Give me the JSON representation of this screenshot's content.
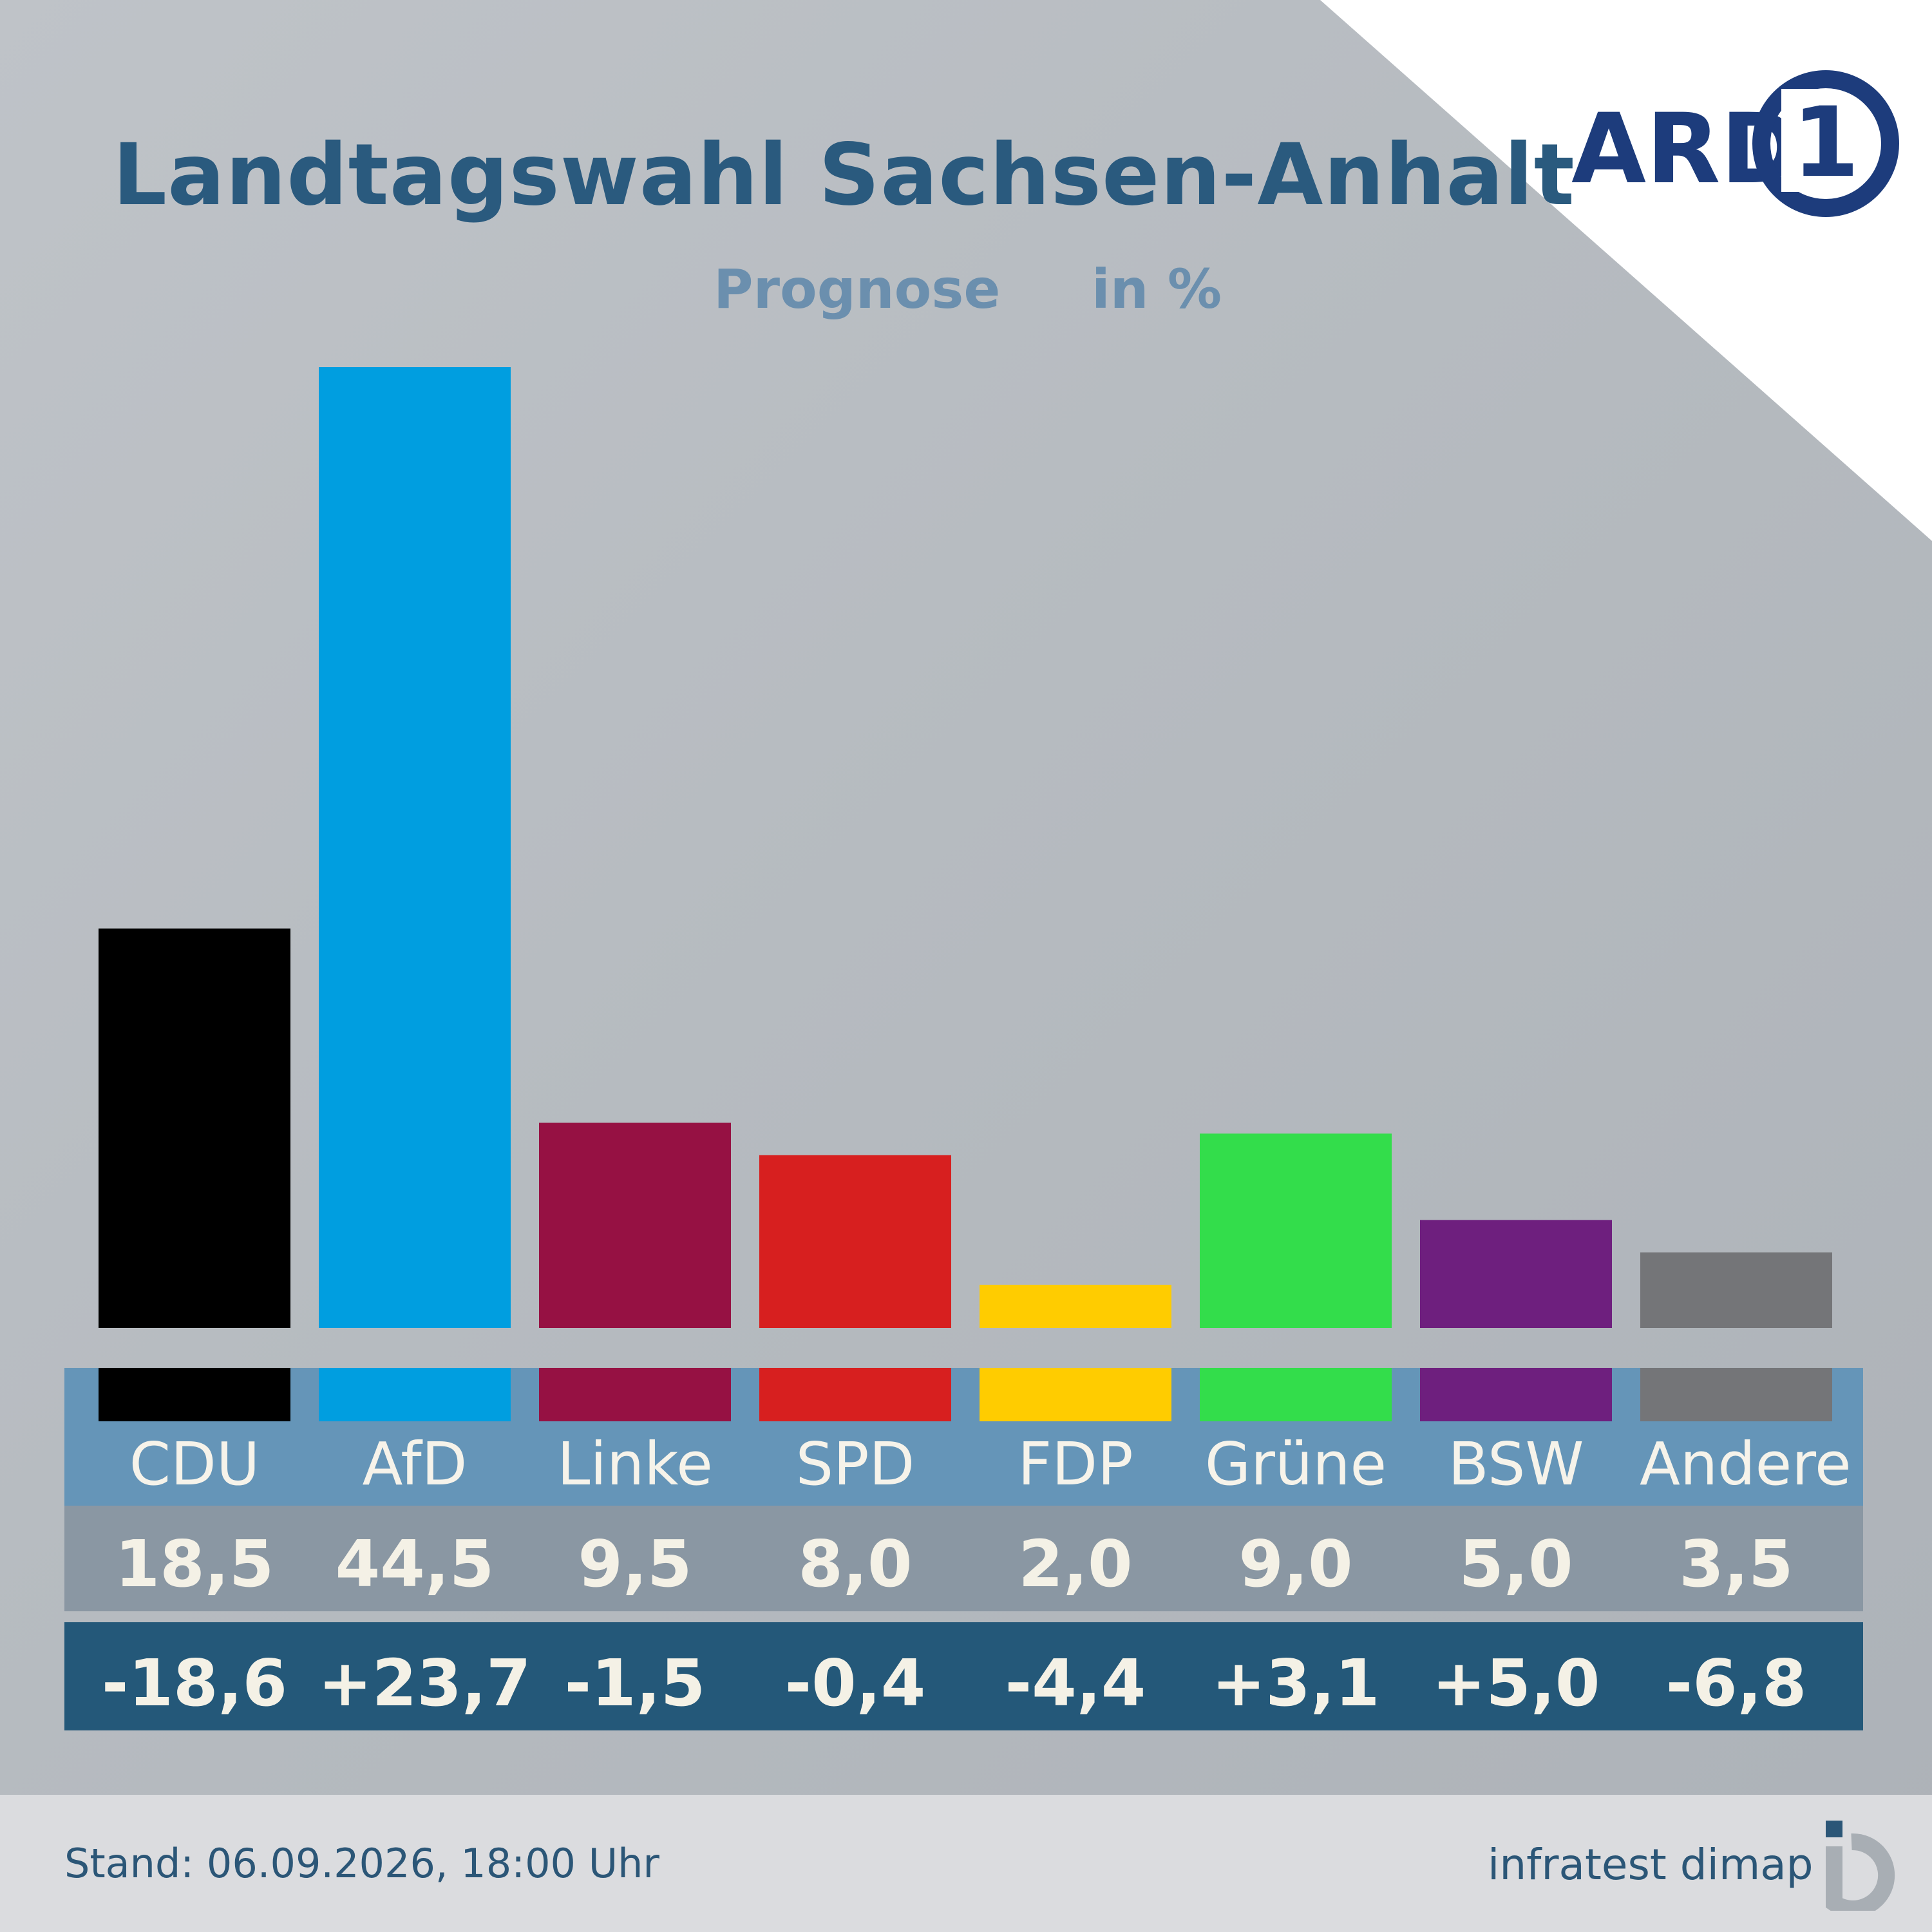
{
  "header": {
    "title": "Landtagswahl Sachsen-Anhalt",
    "subtitle": "Prognose",
    "unit": "in %"
  },
  "logo": {
    "text": "ARD",
    "badge": "1"
  },
  "colors": {
    "CDU": "#000000",
    "AfD": "#009ee0",
    "Linke": "#961143",
    "SPD": "#d71f1f",
    "FDP": "#ffcc00",
    "Grüne": "#33dd4b",
    "BSW": "#6e1f7e",
    "Andere": "#747578",
    "title": "#2a5a7e",
    "label_band": "#6595b8",
    "value_band": "#8a97a3",
    "diff_band": "#245879"
  },
  "chart_data": {
    "type": "bar",
    "title": "Landtagswahl Sachsen-Anhalt",
    "subtitle": "Prognose",
    "unit": "in %",
    "categories": [
      "CDU",
      "AfD",
      "Linke",
      "SPD",
      "FDP",
      "Grüne",
      "BSW",
      "Andere"
    ],
    "values": [
      18.5,
      44.5,
      9.5,
      8.0,
      2.0,
      9.0,
      5.0,
      3.5
    ],
    "value_labels": [
      "18,5",
      "44,5",
      "9,5",
      "8,0",
      "2,0",
      "9,0",
      "5,0",
      "3,5"
    ],
    "changes": [
      -18.6,
      23.7,
      -1.5,
      -0.4,
      -4.4,
      3.1,
      5.0,
      -6.8
    ],
    "change_labels": [
      "-18,6",
      "+23,7",
      "-1,5",
      "-0,4",
      "-4,4",
      "+3,1",
      "+5,0",
      "-6,8"
    ],
    "ylim": [
      0,
      44.5
    ],
    "grid": false,
    "legend": "none"
  },
  "footer": {
    "stand": "Stand:  06.09.2026, 18:00 Uhr",
    "source": "infratest dimap"
  }
}
